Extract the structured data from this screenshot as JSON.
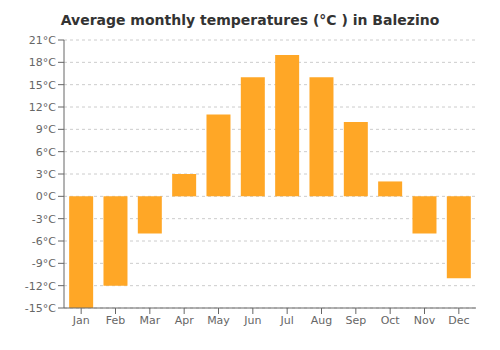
{
  "chart_data": {
    "type": "bar",
    "title": "Average monthly temperatures (°C ) in Balezino",
    "categories": [
      "Jan",
      "Feb",
      "Mar",
      "Apr",
      "May",
      "Jun",
      "Jul",
      "Aug",
      "Sep",
      "Oct",
      "Nov",
      "Dec"
    ],
    "values": [
      -15,
      -12,
      -5,
      3,
      11,
      16,
      19,
      16,
      10,
      2,
      -5,
      -11
    ],
    "color": "#FFA726",
    "ylim": [
      -15,
      21
    ],
    "yticks": [
      {
        "value": -15,
        "label": "-15°C"
      },
      {
        "value": -12,
        "label": "-12°C"
      },
      {
        "value": -9,
        "label": "-9°C"
      },
      {
        "value": -6,
        "label": "-6°C"
      },
      {
        "value": -3,
        "label": "-3°C"
      },
      {
        "value": 0,
        "label": "0°C"
      },
      {
        "value": 3,
        "label": "3°C"
      },
      {
        "value": 6,
        "label": "6°C"
      },
      {
        "value": 9,
        "label": "9°C"
      },
      {
        "value": 12,
        "label": "12°C"
      },
      {
        "value": 15,
        "label": "15°C"
      },
      {
        "value": 18,
        "label": "18°C"
      },
      {
        "value": 21,
        "label": "21°C"
      }
    ],
    "grid": true
  }
}
